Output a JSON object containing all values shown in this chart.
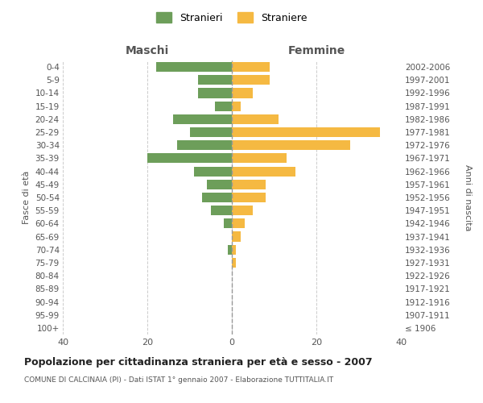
{
  "age_groups": [
    "100+",
    "95-99",
    "90-94",
    "85-89",
    "80-84",
    "75-79",
    "70-74",
    "65-69",
    "60-64",
    "55-59",
    "50-54",
    "45-49",
    "40-44",
    "35-39",
    "30-34",
    "25-29",
    "20-24",
    "15-19",
    "10-14",
    "5-9",
    "0-4"
  ],
  "birth_years": [
    "≤ 1906",
    "1907-1911",
    "1912-1916",
    "1917-1921",
    "1922-1926",
    "1927-1931",
    "1932-1936",
    "1937-1941",
    "1942-1946",
    "1947-1951",
    "1952-1956",
    "1957-1961",
    "1962-1966",
    "1967-1971",
    "1972-1976",
    "1977-1981",
    "1982-1986",
    "1987-1991",
    "1992-1996",
    "1997-2001",
    "2002-2006"
  ],
  "maschi": [
    0,
    0,
    0,
    0,
    0,
    0,
    1,
    0,
    2,
    5,
    7,
    6,
    9,
    20,
    13,
    10,
    14,
    4,
    8,
    8,
    18
  ],
  "femmine": [
    0,
    0,
    0,
    0,
    0,
    1,
    1,
    2,
    3,
    5,
    8,
    8,
    15,
    13,
    28,
    35,
    11,
    2,
    5,
    9,
    9
  ],
  "maschi_color": "#6d9e5a",
  "femmine_color": "#f5b942",
  "background_color": "#ffffff",
  "grid_color": "#cccccc",
  "title": "Popolazione per cittadinanza straniera per età e sesso - 2007",
  "subtitle": "COMUNE DI CALCINAIA (PI) - Dati ISTAT 1° gennaio 2007 - Elaborazione TUTTITALIA.IT",
  "xlabel_left": "Maschi",
  "xlabel_right": "Femmine",
  "ylabel_left": "Fasce di età",
  "ylabel_right": "Anni di nascita",
  "legend_maschi": "Stranieri",
  "legend_femmine": "Straniere",
  "xlim": 40,
  "figsize": [
    6.0,
    5.0
  ],
  "dpi": 100
}
